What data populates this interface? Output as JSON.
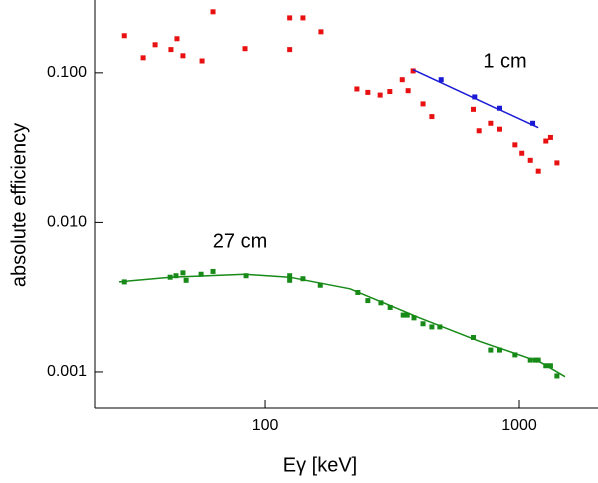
{
  "chart_data": {
    "type": "scatter",
    "x_label": "Eγ [keV]",
    "y_label": "absolute efficiency",
    "annotations": [
      "1 cm",
      "27 cm"
    ],
    "xscale": "log",
    "yscale": "log",
    "xlim": [
      21.4,
      2047
    ],
    "ylim": [
      0.000574,
      0.307
    ],
    "xticks": [
      100,
      1000
    ],
    "yticks": [
      {
        "value": 0.001,
        "label": "0.001"
      },
      {
        "value": 0.01,
        "label": "0.010"
      },
      {
        "value": 0.1,
        "label": "0.100"
      }
    ],
    "series": [
      {
        "name": "1 cm data",
        "mode": "markers",
        "color": "#e81010",
        "x": [
          27.9,
          33.1,
          36.9,
          42.6,
          45.0,
          47.5,
          56.5,
          62.4,
          83.4,
          125,
          125,
          141,
          166,
          230,
          254,
          284,
          310,
          347,
          366,
          383,
          419,
          454,
          662,
          697,
          775,
          838,
          963,
          1025,
          1107,
          1190,
          1275,
          1330,
          1410
        ],
        "values": [
          0.177,
          0.126,
          0.154,
          0.143,
          0.169,
          0.13,
          0.12,
          0.256,
          0.145,
          0.233,
          0.143,
          0.233,
          0.188,
          0.078,
          0.074,
          0.071,
          0.075,
          0.09,
          0.076,
          0.103,
          0.062,
          0.051,
          0.057,
          0.041,
          0.046,
          0.042,
          0.033,
          0.029,
          0.026,
          0.022,
          0.035,
          0.037,
          0.025
        ]
      },
      {
        "name": "1 cm",
        "mode": "markers",
        "color": "#1a1ad6",
        "x": [
          494,
          670,
          838,
          1131
        ],
        "values": [
          0.09,
          0.069,
          0.058,
          0.046
        ]
      },
      {
        "name": "1 cm fit",
        "mode": "line",
        "color": "#1a1ad6",
        "x": [
          383,
          1190
        ],
        "values": [
          0.105,
          0.043
        ]
      },
      {
        "name": "27 cm",
        "mode": "markers",
        "color": "#178a17",
        "x": [
          27.9,
          42.3,
          44.6,
          47.5,
          48.9,
          56.0,
          62.4,
          84.2,
          125,
          125,
          141,
          165,
          232,
          254,
          286,
          311,
          350,
          363,
          386,
          419,
          454,
          488,
          662,
          775,
          838,
          963,
          1107,
          1160,
          1190,
          1275,
          1330,
          1410
        ],
        "values": [
          0.004,
          0.0043,
          0.0044,
          0.0046,
          0.0041,
          0.0045,
          0.0047,
          0.0044,
          0.0044,
          0.0041,
          0.0042,
          0.0038,
          0.0034,
          0.003,
          0.0029,
          0.0027,
          0.0024,
          0.0024,
          0.0023,
          0.0021,
          0.002,
          0.002,
          0.0017,
          0.0014,
          0.0014,
          0.0013,
          0.0012,
          0.0012,
          0.0012,
          0.0011,
          0.0011,
          0.00094
        ]
      },
      {
        "name": "27 cm fit",
        "mode": "line",
        "color": "#178a17",
        "x": [
          26.6,
          42.3,
          83.4,
          125,
          216,
          407,
          702,
          1215,
          1517
        ],
        "values": [
          0.004,
          0.0043,
          0.0045,
          0.0043,
          0.0036,
          0.0023,
          0.0016,
          0.00116,
          0.00093
        ]
      }
    ]
  }
}
